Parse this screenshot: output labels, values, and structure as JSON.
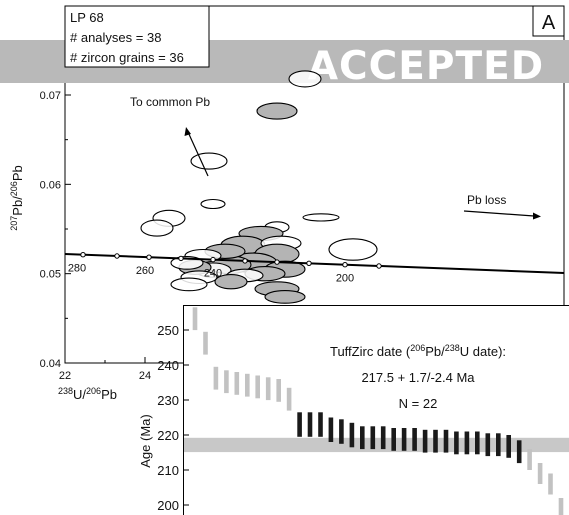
{
  "chart_data": [
    {
      "type": "scatter",
      "subtype": "tera-wasserburg-concordia",
      "panel_label": "A",
      "info_lines": [
        "LP 68",
        "# analyses = 38",
        "# zircon grains = 36"
      ],
      "xlabel": "238U/206Pb",
      "ylabel": "207Pb/206Pb",
      "xlim": [
        22,
        29.8
      ],
      "ylim": [
        0.04,
        0.0735
      ],
      "y_ticks": [
        0.04,
        0.05,
        0.06,
        0.07
      ],
      "y_tick_labels": [
        "0.04",
        "0.05",
        "0.06",
        "0.07"
      ],
      "x_ticks": [
        22,
        24
      ],
      "x_tick_labels": [
        "22",
        "24"
      ],
      "concordia_age_labels": [
        "280",
        "260",
        "240",
        "200"
      ],
      "concordia_age_label_x": [
        22.3,
        24.0,
        25.7,
        29.0
      ],
      "concordia_dot_x": [
        22.45,
        23.3,
        24.1,
        24.9,
        25.7,
        26.5,
        27.3,
        28.1,
        29.0,
        29.85
      ],
      "annotations": {
        "common_pb": "To common Pb",
        "pb_loss": "Pb loss"
      },
      "ellipses": [
        {
          "x": 28.0,
          "y": 0.0718,
          "rx": 0.4,
          "ry": 0.0009,
          "fill": "white"
        },
        {
          "x": 27.3,
          "y": 0.0682,
          "rx": 0.5,
          "ry": 0.0009,
          "fill": "grey"
        },
        {
          "x": 25.6,
          "y": 0.0626,
          "rx": 0.45,
          "ry": 0.0009,
          "fill": "white"
        },
        {
          "x": 25.7,
          "y": 0.0578,
          "rx": 0.3,
          "ry": 0.0005,
          "fill": "white"
        },
        {
          "x": 24.6,
          "y": 0.0562,
          "rx": 0.4,
          "ry": 0.0009,
          "fill": "white"
        },
        {
          "x": 24.3,
          "y": 0.0551,
          "rx": 0.4,
          "ry": 0.0009,
          "fill": "white"
        },
        {
          "x": 28.4,
          "y": 0.0563,
          "rx": 0.45,
          "ry": 0.0004,
          "fill": "white"
        },
        {
          "x": 29.2,
          "y": 0.0527,
          "rx": 0.6,
          "ry": 0.0012,
          "fill": "white"
        },
        {
          "x": 27.3,
          "y": 0.0552,
          "rx": 0.3,
          "ry": 0.0006,
          "fill": "white"
        },
        {
          "x": 26.9,
          "y": 0.0545,
          "rx": 0.55,
          "ry": 0.0008,
          "fill": "grey"
        },
        {
          "x": 26.45,
          "y": 0.0532,
          "rx": 0.55,
          "ry": 0.001,
          "fill": "grey"
        },
        {
          "x": 27.4,
          "y": 0.0534,
          "rx": 0.5,
          "ry": 0.0008,
          "fill": "white"
        },
        {
          "x": 27.3,
          "y": 0.0522,
          "rx": 0.55,
          "ry": 0.0011,
          "fill": "grey"
        },
        {
          "x": 26.7,
          "y": 0.0512,
          "rx": 0.6,
          "ry": 0.0011,
          "fill": "grey"
        },
        {
          "x": 26.1,
          "y": 0.051,
          "rx": 0.55,
          "ry": 0.001,
          "fill": "grey"
        },
        {
          "x": 26.0,
          "y": 0.0525,
          "rx": 0.5,
          "ry": 0.0008,
          "fill": "grey"
        },
        {
          "x": 25.7,
          "y": 0.0504,
          "rx": 0.45,
          "ry": 0.0008,
          "fill": "white"
        },
        {
          "x": 25.45,
          "y": 0.052,
          "rx": 0.45,
          "ry": 0.0007,
          "fill": "white"
        },
        {
          "x": 25.25,
          "y": 0.0507,
          "rx": 0.4,
          "ry": 0.0008,
          "fill": "grey"
        },
        {
          "x": 25.05,
          "y": 0.0512,
          "rx": 0.4,
          "ry": 0.0007,
          "fill": "white"
        },
        {
          "x": 27.5,
          "y": 0.0505,
          "rx": 0.5,
          "ry": 0.0009,
          "fill": "grey"
        },
        {
          "x": 27.0,
          "y": 0.05,
          "rx": 0.5,
          "ry": 0.0008,
          "fill": "grey"
        },
        {
          "x": 26.5,
          "y": 0.0498,
          "rx": 0.45,
          "ry": 0.0007,
          "fill": "white"
        },
        {
          "x": 25.35,
          "y": 0.0496,
          "rx": 0.45,
          "ry": 0.0007,
          "fill": "white"
        },
        {
          "x": 25.1,
          "y": 0.0488,
          "rx": 0.45,
          "ry": 0.0007,
          "fill": "white"
        },
        {
          "x": 26.15,
          "y": 0.0491,
          "rx": 0.4,
          "ry": 0.0008,
          "fill": "grey"
        },
        {
          "x": 27.3,
          "y": 0.0483,
          "rx": 0.55,
          "ry": 0.0008,
          "fill": "grey"
        },
        {
          "x": 27.5,
          "y": 0.0474,
          "rx": 0.5,
          "ry": 0.0007,
          "fill": "grey"
        }
      ]
    },
    {
      "type": "bar",
      "subtype": "ranked-age-error-bars",
      "ylabel": "Age (Ma)",
      "ylim": [
        197,
        258
      ],
      "y_ticks": [
        200,
        210,
        220,
        230,
        240,
        250
      ],
      "y_tick_labels": [
        "200",
        "210",
        "220",
        "230",
        "240",
        "250"
      ],
      "band": {
        "low": 215.1,
        "high": 219.2,
        "center": 217.5
      },
      "annotation_lines": [
        "TuffZirc date (206Pb/238U date):",
        "217.5 + 1.7/-2.4 Ma",
        "N = 22"
      ],
      "bars": [
        {
          "low": 250,
          "high": 256.5,
          "selected": false
        },
        {
          "low": 243,
          "high": 249.5,
          "selected": false
        },
        {
          "low": 233,
          "high": 239.5,
          "selected": false
        },
        {
          "low": 232,
          "high": 238.5,
          "selected": false
        },
        {
          "low": 231.5,
          "high": 238,
          "selected": false
        },
        {
          "low": 231,
          "high": 237.5,
          "selected": false
        },
        {
          "low": 230.5,
          "high": 237,
          "selected": false
        },
        {
          "low": 230,
          "high": 236.5,
          "selected": false
        },
        {
          "low": 229.5,
          "high": 236,
          "selected": false
        },
        {
          "low": 227,
          "high": 233.5,
          "selected": false
        },
        {
          "low": 219.5,
          "high": 226.5,
          "selected": true
        },
        {
          "low": 219.5,
          "high": 226.5,
          "selected": true
        },
        {
          "low": 219.5,
          "high": 226.5,
          "selected": true
        },
        {
          "low": 218,
          "high": 225,
          "selected": true
        },
        {
          "low": 217.5,
          "high": 224.5,
          "selected": true
        },
        {
          "low": 216.5,
          "high": 223.5,
          "selected": true
        },
        {
          "low": 216,
          "high": 222.5,
          "selected": true
        },
        {
          "low": 216,
          "high": 222.5,
          "selected": true
        },
        {
          "low": 216,
          "high": 222.5,
          "selected": true
        },
        {
          "low": 215.5,
          "high": 222,
          "selected": true
        },
        {
          "low": 215.5,
          "high": 222,
          "selected": true
        },
        {
          "low": 215.5,
          "high": 222,
          "selected": true
        },
        {
          "low": 215,
          "high": 221.5,
          "selected": true
        },
        {
          "low": 215,
          "high": 221.5,
          "selected": true
        },
        {
          "low": 215,
          "high": 221.5,
          "selected": true
        },
        {
          "low": 214.5,
          "high": 221,
          "selected": true
        },
        {
          "low": 214.5,
          "high": 221,
          "selected": true
        },
        {
          "low": 214.5,
          "high": 221,
          "selected": true
        },
        {
          "low": 214,
          "high": 220.5,
          "selected": true
        },
        {
          "low": 214,
          "high": 220.5,
          "selected": true
        },
        {
          "low": 213.5,
          "high": 220,
          "selected": true
        },
        {
          "low": 212,
          "high": 218.5,
          "selected": true
        },
        {
          "low": 210,
          "high": 216,
          "selected": false
        },
        {
          "low": 206,
          "high": 212,
          "selected": false
        },
        {
          "low": 203,
          "high": 209,
          "selected": false
        },
        {
          "low": 196,
          "high": 202,
          "selected": false
        }
      ],
      "colors": {
        "selected": "#1a1a1a",
        "rejected": "#c2c2c2",
        "band": "#c8c8c8"
      }
    }
  ],
  "stamp": {
    "text": "ACCEPTED"
  },
  "colors": {
    "ellipse_grey": "#b4b4b4",
    "stamp_band": "#b9b9b9"
  }
}
